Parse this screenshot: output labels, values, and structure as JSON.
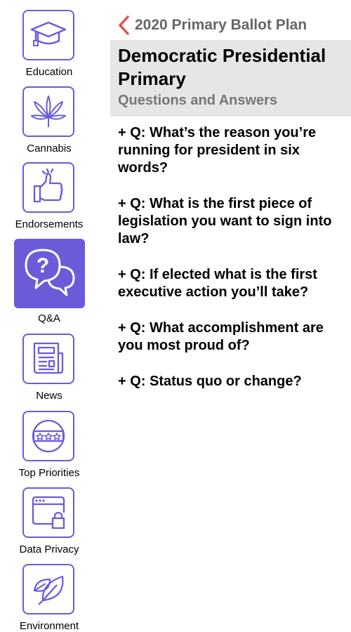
{
  "sidebar": {
    "items": [
      {
        "label": "Education",
        "icon": "graduation-cap-icon"
      },
      {
        "label": "Cannabis",
        "icon": "cannabis-leaf-icon"
      },
      {
        "label": "Endorsements",
        "icon": "thumbs-up-icon"
      },
      {
        "label": "Q&A",
        "icon": "chat-question-icon",
        "active": true
      },
      {
        "label": "News",
        "icon": "newspaper-icon"
      },
      {
        "label": "Top Priorities",
        "icon": "stars-badge-icon"
      },
      {
        "label": "Data Privacy",
        "icon": "browser-lock-icon"
      },
      {
        "label": "Environment",
        "icon": "leaves-icon"
      }
    ]
  },
  "header": {
    "back_label": "2020 Primary Ballot Plan",
    "title": "Democratic Presidential Primary",
    "subtitle": "Questions and Answers"
  },
  "questions": [
    "+ Q: What’s the reason you’re running for president in six words?",
    "+ Q: What is the first piece of legislation you want to sign into law?",
    "+ Q: If elected what is the first executive action you’ll take?",
    "+ Q: What accomplishment are you most proud of?",
    "+ Q: Status quo or change?"
  ],
  "colors": {
    "accent": "#6a5cd8",
    "back_arrow": "#d9534f",
    "header_bg": "#e6e6e6",
    "subtitle": "#777777"
  }
}
